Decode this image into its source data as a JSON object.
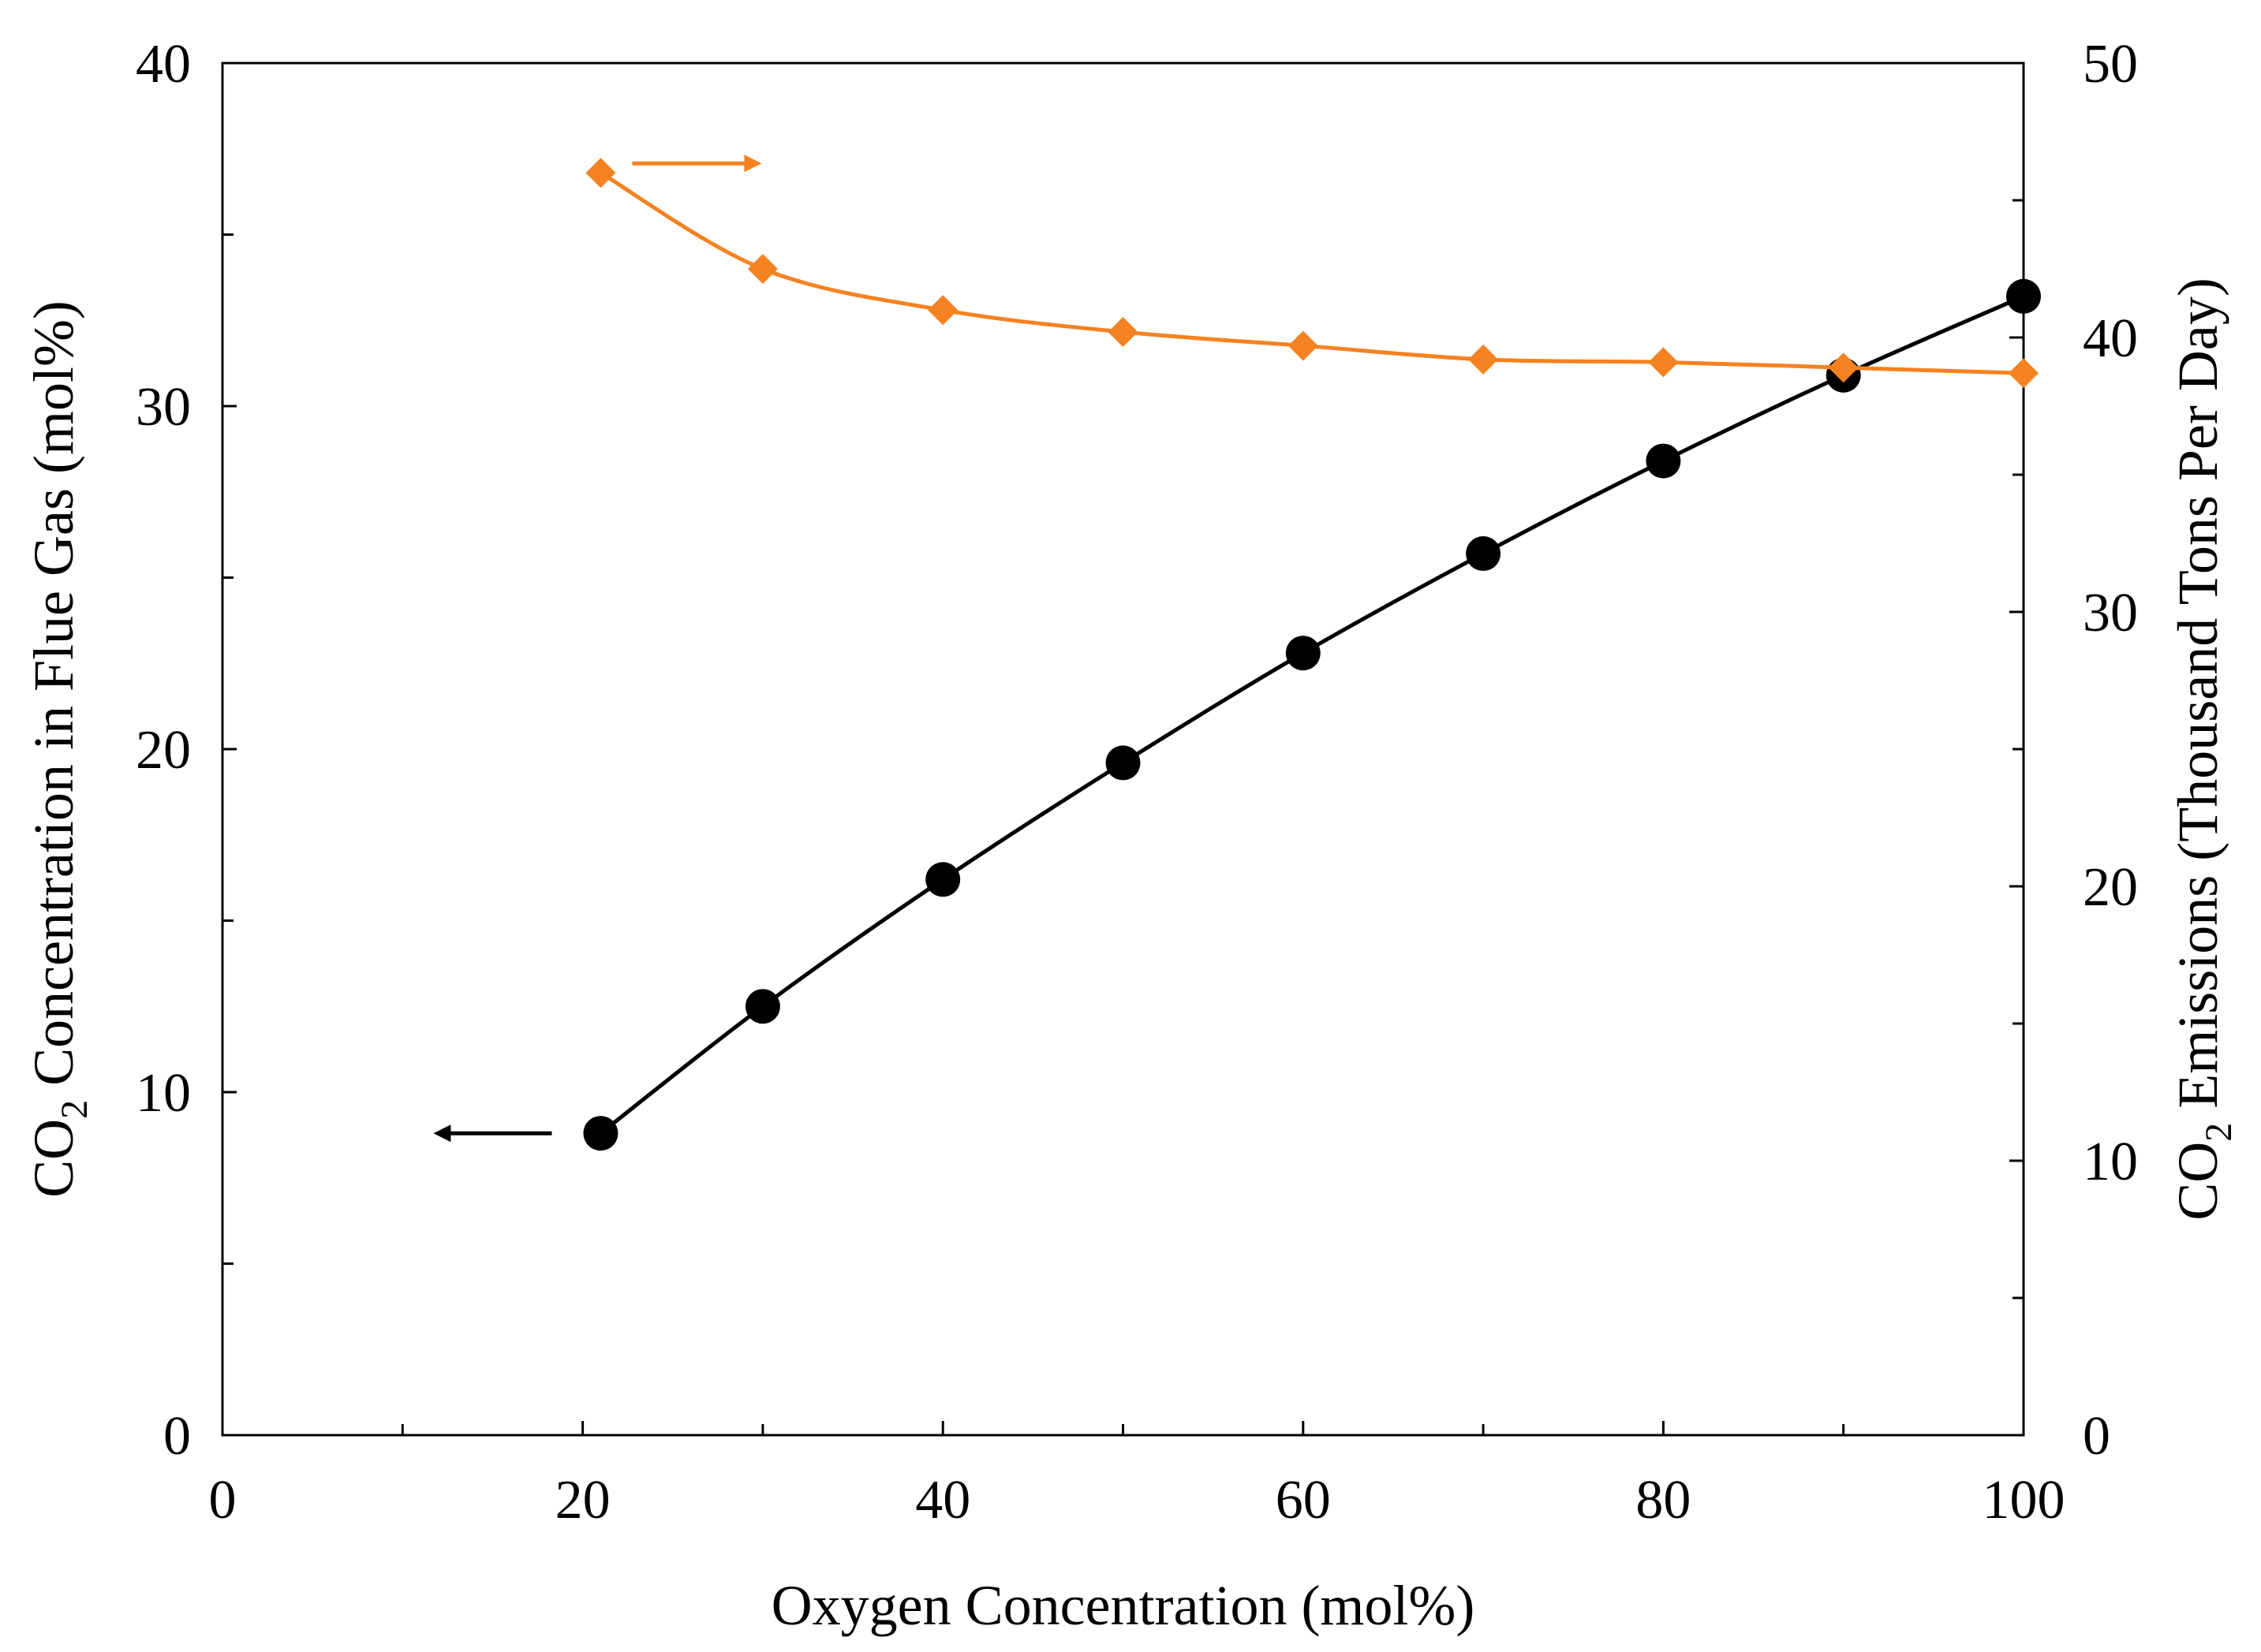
{
  "chart_data": {
    "type": "line",
    "title": "",
    "xlabel": "Oxygen Concentration (mol%)",
    "ylabel_left": {
      "prefix": "CO",
      "subscript": "2",
      "suffix": " Concentration in Flue Gas (mol%)"
    },
    "ylabel_right": {
      "prefix": "CO",
      "subscript": "2",
      "suffix": " Emissions (Thousand Tons Per Day)"
    },
    "xlim": [
      0,
      100
    ],
    "ylim_left": [
      0,
      40
    ],
    "ylim_right": [
      0,
      50
    ],
    "x_ticks": [
      0,
      20,
      40,
      60,
      80,
      100
    ],
    "x_tick_labels": [
      "0",
      "20",
      "40",
      "60",
      "80",
      "100"
    ],
    "x_minor_ticks": [
      10,
      30,
      50,
      70,
      90
    ],
    "y_left_ticks": [
      0,
      10,
      20,
      30,
      40
    ],
    "y_left_tick_labels": [
      "0",
      "10",
      "20",
      "30",
      "40"
    ],
    "y_left_minor_ticks": [
      5,
      15,
      25,
      35
    ],
    "y_right_ticks": [
      0,
      10,
      20,
      30,
      40,
      50
    ],
    "y_right_tick_labels": [
      "0",
      "10",
      "20",
      "30",
      "40",
      "50"
    ],
    "y_right_minor_ticks": [
      5,
      15,
      25,
      35,
      45
    ],
    "grid": false,
    "series": [
      {
        "name": "CO2 Concentration in Flue Gas",
        "axis": "left",
        "marker": "circle",
        "color": "#000000",
        "x": [
          21,
          30,
          40,
          50,
          60,
          70,
          80,
          90,
          100
        ],
        "y": [
          8.8,
          12.5,
          16.2,
          19.6,
          22.8,
          25.7,
          28.4,
          30.9,
          33.2
        ]
      },
      {
        "name": "CO2 Emissions",
        "axis": "right",
        "marker": "diamond",
        "color": "#F58220",
        "x": [
          21,
          30,
          40,
          50,
          60,
          70,
          80,
          90,
          100
        ],
        "y": [
          46.0,
          42.5,
          41.0,
          40.2,
          39.7,
          39.2,
          39.1,
          38.9,
          38.7
        ]
      }
    ],
    "annotations": [
      {
        "name": "left-axis-arrow",
        "series": "CO2 Concentration in Flue Gas",
        "direction": "left"
      },
      {
        "name": "right-axis-arrow",
        "series": "CO2 Emissions",
        "direction": "right"
      }
    ]
  }
}
